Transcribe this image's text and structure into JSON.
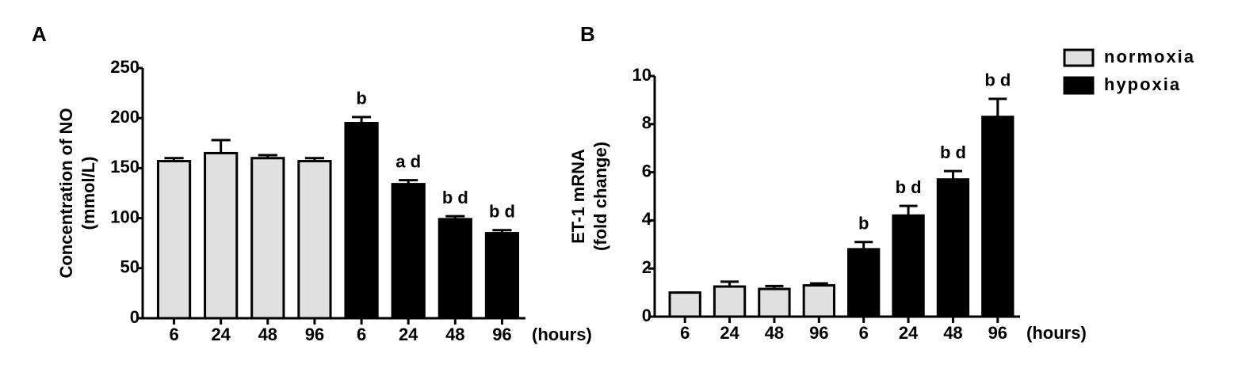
{
  "chart_data": [
    {
      "type": "bar",
      "panel": "A",
      "ylabel": [
        "Concentration of NO",
        "(mmol/L)"
      ],
      "xlabel": "(hours)",
      "categories": [
        "6",
        "24",
        "48",
        "96",
        "6",
        "24",
        "48",
        "96"
      ],
      "series": [
        {
          "color": "#e0e0e0",
          "values": [
            157,
            165,
            160,
            157,
            null,
            null,
            null,
            null
          ],
          "errors": [
            3,
            13,
            3,
            3,
            null,
            null,
            null,
            null
          ]
        },
        {
          "color": "#000000",
          "values": [
            null,
            null,
            null,
            null,
            195,
            134,
            99,
            85
          ],
          "errors": [
            null,
            null,
            null,
            null,
            6,
            4,
            3,
            3
          ]
        }
      ],
      "annotations": [
        null,
        null,
        null,
        null,
        "b",
        "a d",
        "b d",
        "b d"
      ],
      "ylim": [
        0,
        250
      ],
      "yticks": [
        0,
        50,
        100,
        150,
        200,
        250
      ]
    },
    {
      "type": "bar",
      "panel": "B",
      "ylabel": [
        "ET-1 mRNA",
        "(fold change)"
      ],
      "xlabel": "(hours)",
      "categories": [
        "6",
        "24",
        "48",
        "96",
        "6",
        "24",
        "48",
        "96"
      ],
      "series": [
        {
          "name": "normoxia",
          "color": "#e0e0e0",
          "values": [
            1.0,
            1.25,
            1.15,
            1.3,
            null,
            null,
            null,
            null
          ],
          "errors": [
            0,
            0.2,
            0.12,
            0.08,
            null,
            null,
            null,
            null
          ]
        },
        {
          "name": "hypoxia",
          "color": "#000000",
          "values": [
            null,
            null,
            null,
            null,
            2.8,
            4.2,
            5.7,
            8.3
          ],
          "errors": [
            null,
            null,
            null,
            null,
            0.3,
            0.4,
            0.35,
            0.75
          ]
        }
      ],
      "annotations": [
        null,
        null,
        null,
        null,
        "b",
        "b d",
        "b d",
        "b d"
      ],
      "ylim": [
        0,
        10
      ],
      "yticks": [
        0,
        2,
        4,
        6,
        8,
        10
      ]
    }
  ]
}
